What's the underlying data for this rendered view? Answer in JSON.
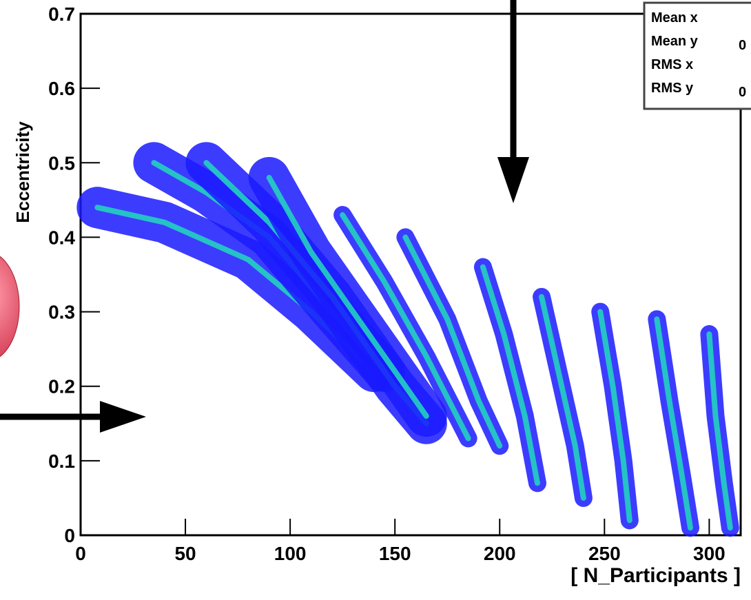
{
  "chart_data": {
    "type": "hist2d",
    "x_label": "[ N_Participants ]",
    "y_label": "Eccentricity",
    "xlim": [
      0,
      315
    ],
    "ylim": [
      0,
      0.7
    ],
    "xticks": [
      0,
      50,
      100,
      150,
      200,
      250,
      300
    ],
    "yticks": [
      0,
      0.1,
      0.2,
      0.3,
      0.4,
      0.5,
      0.6,
      0.7
    ],
    "color": "#1a1aff",
    "core_color": "#22d0c0",
    "streaks": [
      {
        "x": [
          8,
          40,
          80,
          110,
          140
        ],
        "y": [
          0.44,
          0.42,
          0.37,
          0.3,
          0.22
        ]
      },
      {
        "x": [
          35,
          60,
          90,
          120,
          145
        ],
        "y": [
          0.5,
          0.46,
          0.4,
          0.3,
          0.22
        ]
      },
      {
        "x": [
          60,
          90,
          120,
          150,
          165
        ],
        "y": [
          0.5,
          0.42,
          0.32,
          0.2,
          0.15
        ]
      },
      {
        "x": [
          90,
          110,
          130,
          150,
          165
        ],
        "y": [
          0.48,
          0.38,
          0.3,
          0.22,
          0.16
        ]
      },
      {
        "x": [
          125,
          145,
          165,
          185
        ],
        "y": [
          0.43,
          0.34,
          0.24,
          0.13
        ]
      },
      {
        "x": [
          155,
          175,
          190,
          200
        ],
        "y": [
          0.4,
          0.29,
          0.18,
          0.12
        ]
      },
      {
        "x": [
          192,
          202,
          212,
          218
        ],
        "y": [
          0.36,
          0.27,
          0.16,
          0.07
        ]
      },
      {
        "x": [
          220,
          228,
          236,
          240
        ],
        "y": [
          0.32,
          0.22,
          0.12,
          0.05
        ]
      },
      {
        "x": [
          248,
          254,
          259,
          262
        ],
        "y": [
          0.3,
          0.2,
          0.1,
          0.02
        ]
      },
      {
        "x": [
          275,
          281,
          287,
          291
        ],
        "y": [
          0.29,
          0.18,
          0.08,
          0.01
        ]
      },
      {
        "x": [
          300,
          303,
          307,
          310
        ],
        "y": [
          0.27,
          0.16,
          0.07,
          0.01
        ]
      }
    ],
    "stats": {
      "labels": [
        "Mean x",
        "Mean y",
        "RMS x",
        "RMS y"
      ],
      "values": [
        "",
        "0",
        "",
        "0"
      ]
    }
  }
}
